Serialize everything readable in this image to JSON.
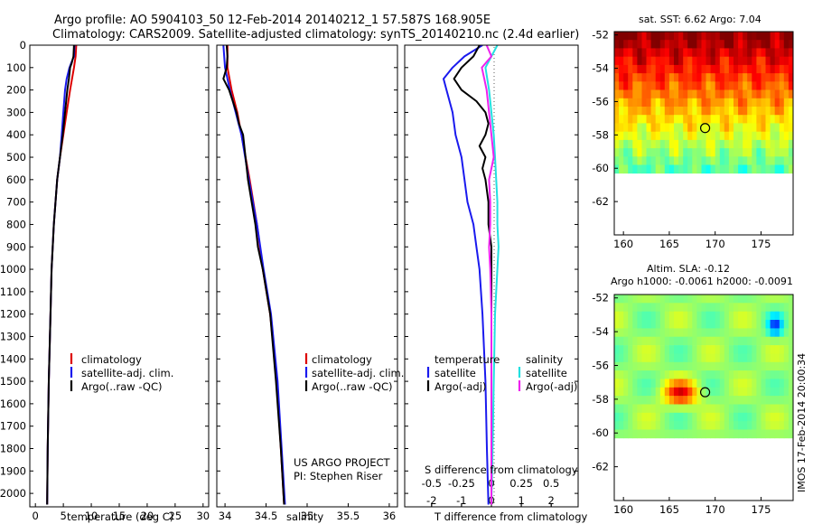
{
  "header": {
    "line1": "Argo profile: AO 5904103_50 12-Feb-2014 20140212_1 57.587S 168.905E",
    "line2": "Climatology: CARS2009. Satellite-adjusted climatology: synTS_20140210.nc (2.4d earlier)"
  },
  "colors": {
    "climatology": "#dd0000",
    "satellite": "#1a1aee",
    "argo": "#000000",
    "sal_satellite": "#22e0e0",
    "sal_argo": "#ee22ee"
  },
  "legend": {
    "climatology": "climatology",
    "satellite_clim": "satellite-adj. clim.",
    "argo_raw": "Argo(..raw -QC)",
    "temperature": "temperature",
    "salinity": "salinity",
    "satellite": "satellite",
    "argo_adj": "Argo(-adj)"
  },
  "credits": {
    "project": "US ARGO PROJECT",
    "pi": "PI: Stephen Riser",
    "stamp": "IMOS 17-Feb-2014 20:00:34"
  },
  "maps": {
    "sst_title": "sat. SST: 6.62  Argo: 7.04",
    "sla_title1": "Altim. SLA: -0.12",
    "sla_title2": "Argo h1000: -0.0061 h2000: -0.0091",
    "lon_ticks": [
      "160",
      "165",
      "170",
      "175"
    ],
    "lat_ticks": [
      "-52",
      "-54",
      "-56",
      "-58",
      "-60",
      "-62"
    ],
    "lon_range": [
      159,
      178.5
    ],
    "lat_range": [
      -51.8,
      -64.0
    ],
    "data_south_limit": -60,
    "float_position": {
      "lon": 168.905,
      "lat": -57.587
    }
  },
  "chart_data": [
    {
      "type": "line",
      "name": "temperature",
      "xlabel": "temperature (deg C)",
      "ylabel": "",
      "xlim": [
        -1,
        31
      ],
      "ylim": [
        2060,
        0
      ],
      "xticks": [
        "0",
        "5",
        "10",
        "15",
        "20",
        "25",
        "30"
      ],
      "yticks": [
        "0",
        "100",
        "200",
        "300",
        "400",
        "500",
        "600",
        "700",
        "800",
        "900",
        "1000",
        "1100",
        "1200",
        "1300",
        "1400",
        "1500",
        "1600",
        "1700",
        "1800",
        "1900",
        "2000"
      ],
      "series": [
        {
          "name": "climatology",
          "color_key": "climatology",
          "depth": [
            0,
            50,
            100,
            200,
            300,
            400,
            500,
            600,
            800,
            1000,
            1200,
            1500,
            1800,
            2050
          ],
          "values": [
            7.3,
            7.2,
            6.9,
            6.2,
            5.6,
            5.0,
            4.4,
            3.9,
            3.3,
            2.9,
            2.7,
            2.4,
            2.2,
            2.1
          ]
        },
        {
          "name": "satellite-adj. clim.",
          "color_key": "satellite",
          "depth": [
            0,
            50,
            80,
            100,
            150,
            200,
            300,
            400,
            500,
            600,
            800,
            1000,
            1200,
            1500,
            1800,
            2050
          ],
          "values": [
            7.0,
            6.9,
            6.4,
            6.1,
            5.6,
            5.3,
            5.0,
            4.7,
            4.4,
            3.9,
            3.3,
            2.9,
            2.7,
            2.4,
            2.2,
            2.1
          ]
        },
        {
          "name": "Argo(..raw -QC)",
          "color_key": "argo",
          "depth": [
            0,
            50,
            80,
            100,
            150,
            200,
            300,
            400,
            500,
            600,
            800,
            1000,
            1200,
            1500,
            1800,
            2050
          ],
          "values": [
            6.9,
            6.8,
            6.5,
            6.2,
            6.0,
            5.7,
            5.3,
            4.9,
            4.4,
            3.9,
            3.3,
            2.9,
            2.7,
            2.4,
            2.2,
            2.1
          ]
        }
      ]
    },
    {
      "type": "line",
      "name": "salinity",
      "xlabel": "salinity",
      "ylabel": "",
      "xlim": [
        33.9,
        36.1
      ],
      "ylim": [
        2060,
        0
      ],
      "xticks": [
        "34",
        "34.5",
        "35",
        "35.5",
        "36"
      ],
      "series": [
        {
          "name": "climatology",
          "color_key": "climatology",
          "depth": [
            0,
            100,
            200,
            300,
            400,
            600,
            800,
            1000,
            1200,
            1500,
            1800,
            2050
          ],
          "values": [
            34.03,
            34.03,
            34.08,
            34.15,
            34.2,
            34.3,
            34.39,
            34.46,
            34.55,
            34.63,
            34.68,
            34.72
          ]
        },
        {
          "name": "satellite-adj. clim.",
          "color_key": "satellite",
          "depth": [
            0,
            100,
            200,
            300,
            400,
            600,
            800,
            1000,
            1200,
            1500,
            1800,
            2050
          ],
          "values": [
            33.98,
            34.0,
            34.06,
            34.13,
            34.2,
            34.29,
            34.39,
            34.47,
            34.56,
            34.64,
            34.69,
            34.73
          ]
        },
        {
          "name": "Argo(..raw -QC)",
          "color_key": "argo",
          "depth": [
            0,
            50,
            100,
            150,
            200,
            300,
            350,
            400,
            600,
            800,
            900,
            1000,
            1200,
            1500,
            1800,
            2050
          ],
          "values": [
            34.02,
            34.03,
            34.02,
            33.98,
            34.05,
            34.14,
            34.17,
            34.22,
            34.28,
            34.37,
            34.4,
            34.46,
            34.55,
            34.62,
            34.68,
            34.72
          ]
        }
      ]
    },
    {
      "type": "line",
      "name": "difference from climatology",
      "xlabel": "T difference from climatology",
      "x2label": "S difference from climatology",
      "ylabel": "",
      "xlim": [
        -2.9,
        2.9
      ],
      "x2lim": [
        -0.725,
        0.725
      ],
      "ylim": [
        2060,
        0
      ],
      "xticks": [
        "-2",
        "-1",
        "0",
        "1",
        "2"
      ],
      "x2ticks": [
        "-0.5",
        "-0.25",
        "0",
        "0.25",
        "0.5"
      ],
      "series": [
        {
          "name": "temperature satellite",
          "color_key": "satellite",
          "axis": "T",
          "depth": [
            0,
            50,
            100,
            150,
            200,
            300,
            400,
            500,
            600,
            700,
            800,
            900,
            1000,
            1200,
            1500,
            1800,
            2050
          ],
          "values": [
            -0.3,
            -0.9,
            -1.3,
            -1.6,
            -1.5,
            -1.3,
            -1.2,
            -1.0,
            -0.9,
            -0.8,
            -0.6,
            -0.5,
            -0.4,
            -0.3,
            -0.2,
            -0.15,
            -0.1
          ]
        },
        {
          "name": "temperature Argo(-adj)",
          "color_key": "argo",
          "axis": "T",
          "depth": [
            0,
            50,
            100,
            150,
            200,
            250,
            300,
            350,
            400,
            450,
            500,
            550,
            600,
            700,
            800,
            900,
            1000,
            1200,
            1500,
            1800,
            2050
          ],
          "values": [
            -0.4,
            -0.6,
            -1.0,
            -1.25,
            -1.0,
            -0.5,
            -0.2,
            -0.1,
            -0.2,
            -0.4,
            -0.2,
            -0.3,
            -0.2,
            -0.1,
            -0.1,
            0.0,
            0.0,
            0.0,
            0.0,
            0.0,
            0.0
          ]
        },
        {
          "name": "salinity satellite",
          "color_key": "sal_satellite",
          "axis": "S",
          "depth": [
            0,
            50,
            100,
            200,
            300,
            400,
            500,
            600,
            700,
            800,
            900,
            1000,
            1200,
            1500,
            1800,
            2050
          ],
          "values": [
            0.05,
            0.0,
            -0.05,
            -0.02,
            0.0,
            0.02,
            0.03,
            0.04,
            0.05,
            0.05,
            0.06,
            0.05,
            0.03,
            0.02,
            0.01,
            0.0
          ]
        },
        {
          "name": "salinity Argo(-adj)",
          "color_key": "sal_argo",
          "axis": "S",
          "depth": [
            0,
            50,
            100,
            150,
            200,
            300,
            400,
            500,
            600,
            700,
            800,
            900,
            1000,
            1200,
            1500,
            1800,
            2050
          ],
          "values": [
            -0.04,
            0.0,
            -0.08,
            -0.06,
            -0.04,
            -0.02,
            0.0,
            0.02,
            -0.02,
            -0.01,
            -0.01,
            -0.02,
            -0.01,
            0.0,
            0.0,
            0.0,
            0.0
          ]
        }
      ]
    }
  ]
}
